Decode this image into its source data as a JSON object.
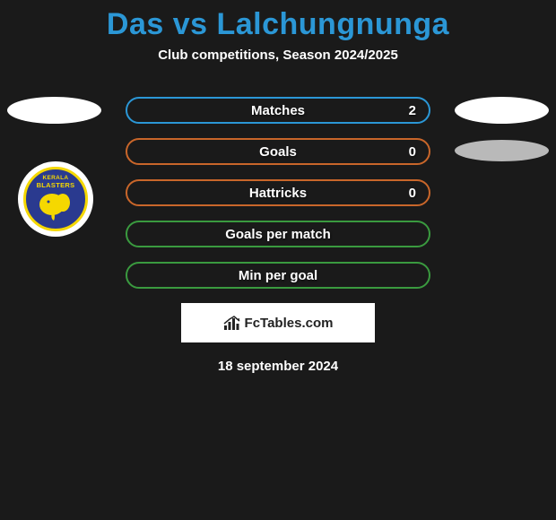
{
  "page": {
    "title_color": "#2b97d6",
    "title": "Das vs Lalchungnunga",
    "subtitle": "Club competitions, Season 2024/2025",
    "date": "18 september 2024",
    "brand": "FcTables.com",
    "background_color": "#1a1a1a"
  },
  "stats": [
    {
      "label": "Matches",
      "value": "2",
      "border": "#2b97d6",
      "text": "#ffffff"
    },
    {
      "label": "Goals",
      "value": "0",
      "border": "#c9662a",
      "text": "#ffffff"
    },
    {
      "label": "Hattricks",
      "value": "0",
      "border": "#c9662a",
      "text": "#ffffff"
    },
    {
      "label": "Goals per match",
      "value": "",
      "border": "#3a9a3f",
      "text": "#ffffff"
    },
    {
      "label": "Min per goal",
      "value": "",
      "border": "#3a9a3f",
      "text": "#ffffff"
    }
  ],
  "logo": {
    "line1": "KERALA",
    "line2": "BLASTERS",
    "bg": "#2a3a8f",
    "accent": "#f5d800"
  },
  "ovals": {
    "white": "#ffffff",
    "grey": "#b9b9b9"
  }
}
